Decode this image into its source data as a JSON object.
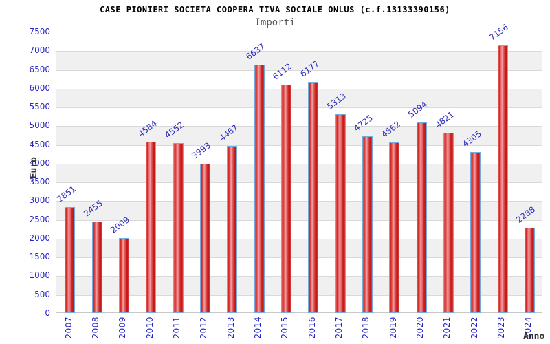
{
  "header": {
    "title": "CASE PIONIERI SOCIETA COOPERA TIVA SOCIALE ONLUS (c.f.13133390156)",
    "subtitle": "Importi"
  },
  "chart_data": {
    "type": "bar",
    "title": "CASE PIONIERI SOCIETA COOPERA TIVA SOCIALE ONLUS (c.f.13133390156)",
    "subtitle": "Importi",
    "xlabel": "Anno",
    "ylabel": "Euro",
    "categories": [
      "2007",
      "2008",
      "2009",
      "2010",
      "2011",
      "2012",
      "2013",
      "2014",
      "2015",
      "2016",
      "2017",
      "2018",
      "2019",
      "2020",
      "2021",
      "2022",
      "2023",
      "2024"
    ],
    "values": [
      2851,
      2455,
      2009,
      4584,
      4552,
      3993,
      4467,
      6637,
      6112,
      6177,
      5313,
      4725,
      4562,
      5094,
      4821,
      4305,
      7156,
      2288
    ],
    "ylim": [
      0,
      7500
    ],
    "ytick_step": 500,
    "grid": true,
    "banded_background": true,
    "legend": "none",
    "colors": {
      "bar_fill_dark": "#d02020",
      "bar_fill_highlight": "#f2a0a0",
      "bar_border": "#77aadd",
      "tick_label": "#2525c8",
      "value_label": "#2e2ebe",
      "band": "#f0f0f0",
      "gridline": "#d9d9d9",
      "plot_border": "#c8c8c8",
      "title": "#000000",
      "subtitle": "#555555",
      "axis_title": "#333333"
    }
  }
}
